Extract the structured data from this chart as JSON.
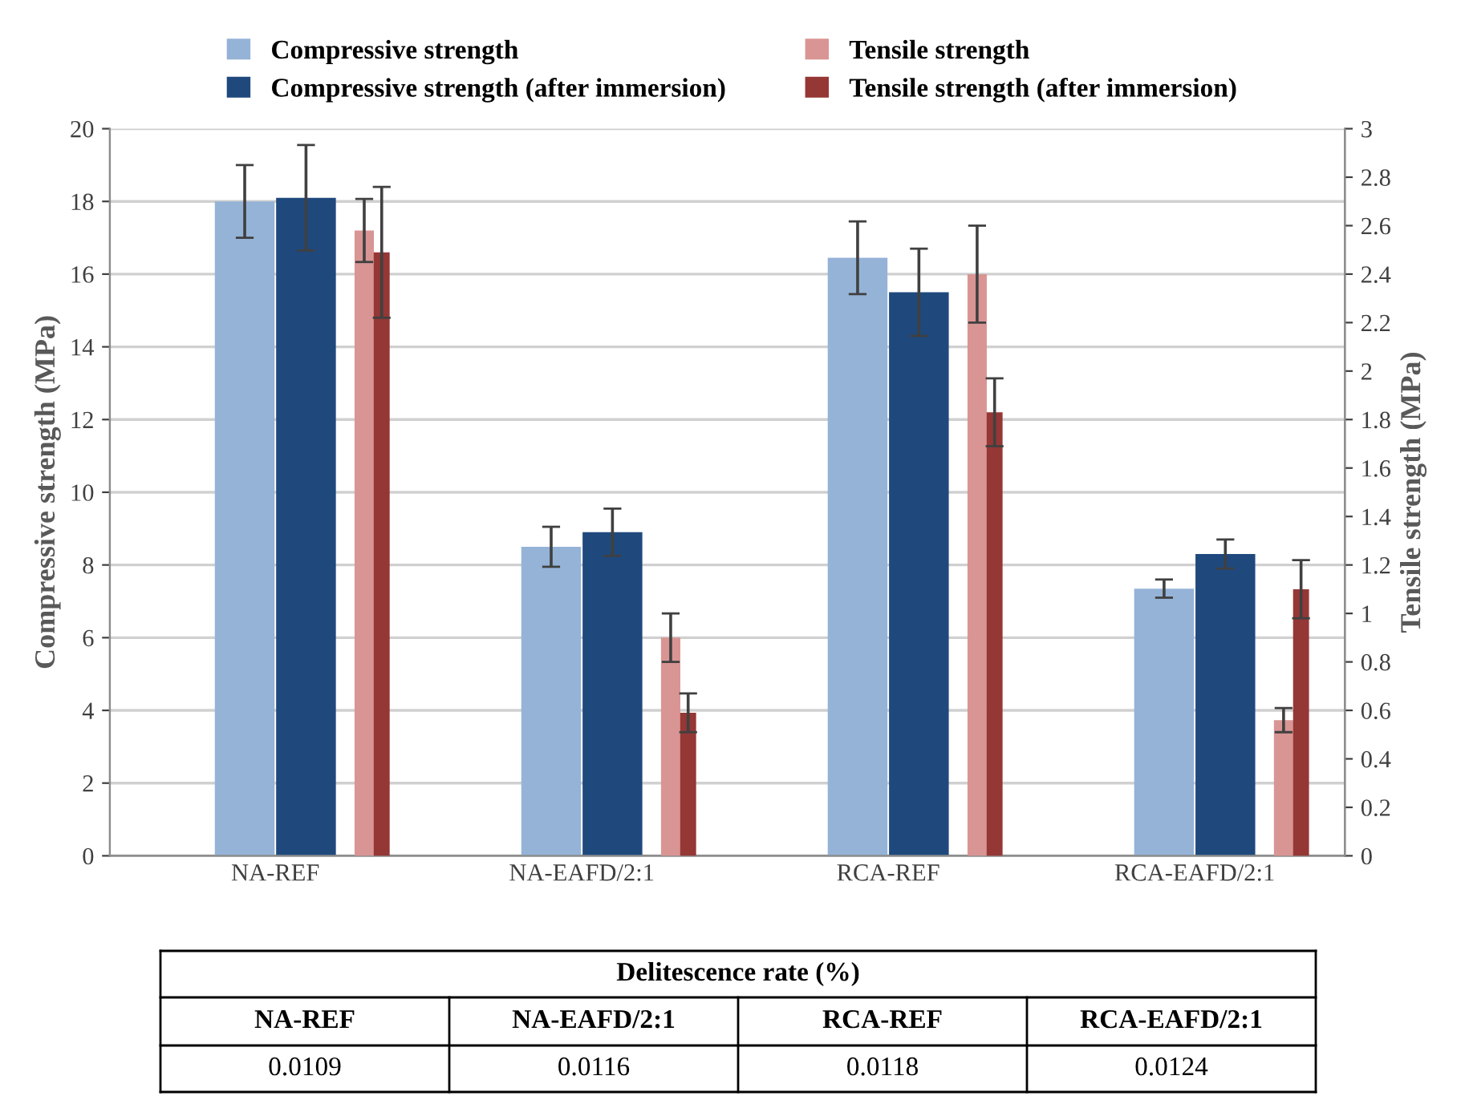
{
  "chart_data": [
    {
      "type": "bar",
      "ylabel": "Compressive strength (MPa)",
      "y2label": "Tensile strength (MPa)",
      "categories": [
        "NA-REF",
        "NA-EAFD/2:1",
        "RCA-REF",
        "RCA-EAFD/2:1"
      ],
      "series": [
        {
          "name": "Compressive strength",
          "color": "#95b3d7",
          "values": [
            18.0,
            8.5,
            16.45,
            7.35
          ],
          "errors": [
            1.0,
            0.55,
            1.0,
            0.25
          ]
        },
        {
          "name": "Compressive strength (after immersion)",
          "color": "#1f497d",
          "values": [
            18.1,
            8.9,
            15.5,
            8.3
          ],
          "errors": [
            1.45,
            0.65,
            1.2,
            0.4
          ]
        },
        {
          "name": "Tensile strength",
          "color": "#d99594",
          "axis": "y2",
          "values": [
            2.58,
            0.9,
            2.4,
            0.56
          ],
          "errors": [
            0.13,
            0.1,
            0.2,
            0.05
          ]
        },
        {
          "name": "Tensile strength (after immersion)",
          "color": "#953735",
          "axis": "y2",
          "values": [
            2.49,
            0.59,
            1.83,
            1.1
          ],
          "errors": [
            0.27,
            0.08,
            0.14,
            0.12
          ]
        }
      ],
      "ylim": [
        0,
        20
      ],
      "yticks": [
        0,
        2,
        4,
        6,
        8,
        10,
        12,
        14,
        16,
        18,
        20
      ],
      "y2lim": [
        0,
        3
      ],
      "y2ticks": [
        0,
        0.2,
        0.4,
        0.6,
        0.8,
        1,
        1.2,
        1.4,
        1.6,
        1.8,
        2,
        2.2,
        2.4,
        2.6,
        2.8,
        3
      ],
      "grid": "y",
      "legend": "top"
    },
    {
      "type": "other",
      "title": "Delitescence rate (%)",
      "categories": [
        "NA-REF",
        "NA-EAFD/2:1",
        "RCA-REF",
        "RCA-EAFD/2:1"
      ],
      "values": [
        0.0109,
        0.0116,
        0.0118,
        0.0124
      ],
      "data_labels": true
    }
  ]
}
